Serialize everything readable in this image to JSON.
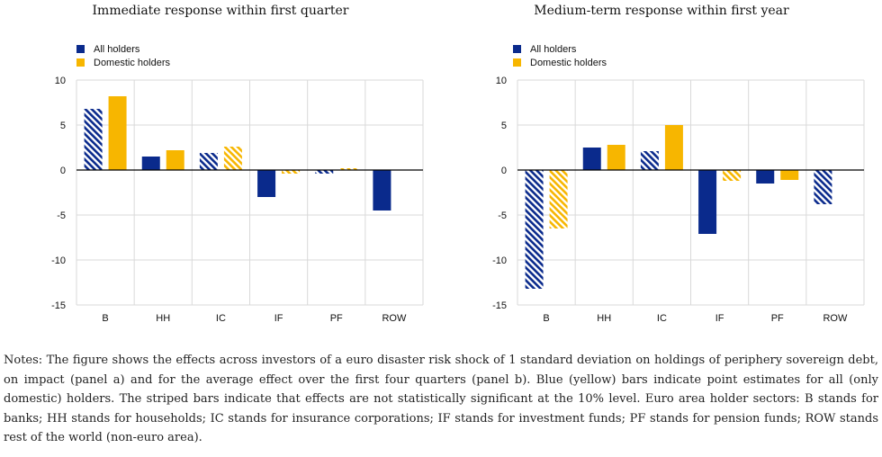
{
  "colors": {
    "all_holders": "#0a2a8c",
    "domestic_holders": "#f7b600",
    "grid": "#d9d9d9",
    "axis": "#000000"
  },
  "legend": {
    "all": "All holders",
    "domestic": "Domestic holders"
  },
  "chart_data": [
    {
      "type": "bar",
      "title": "Immediate response within first quarter",
      "categories": [
        "B",
        "HH",
        "IC",
        "IF",
        "PF",
        "ROW"
      ],
      "ylim": [
        -15,
        10
      ],
      "yticks": [
        10,
        5,
        0,
        -5,
        -10,
        -15
      ],
      "grid": true,
      "legend_position": "top-left",
      "series": [
        {
          "name": "All holders",
          "values": [
            6.8,
            1.5,
            1.9,
            -3.0,
            -0.4,
            -4.5
          ],
          "significant": [
            false,
            true,
            false,
            true,
            false,
            true
          ]
        },
        {
          "name": "Domestic holders",
          "values": [
            8.2,
            2.2,
            2.6,
            -0.4,
            0.2,
            null
          ],
          "significant": [
            true,
            true,
            false,
            false,
            false,
            null
          ]
        }
      ]
    },
    {
      "type": "bar",
      "title": "Medium-term response within first year",
      "categories": [
        "B",
        "HH",
        "IC",
        "IF",
        "PF",
        "ROW"
      ],
      "ylim": [
        -15,
        10
      ],
      "yticks": [
        10,
        5,
        0,
        -5,
        -10,
        -15
      ],
      "grid": true,
      "legend_position": "top-left",
      "series": [
        {
          "name": "All holders",
          "values": [
            -13.2,
            2.5,
            2.1,
            -7.1,
            -1.5,
            -3.8
          ],
          "significant": [
            false,
            true,
            false,
            true,
            true,
            false
          ]
        },
        {
          "name": "Domestic holders",
          "values": [
            -6.5,
            2.8,
            5.0,
            -1.2,
            -1.1,
            null
          ],
          "significant": [
            false,
            true,
            true,
            false,
            true,
            null
          ]
        }
      ]
    }
  ],
  "notes": "Notes: The figure shows the effects across investors of a euro disaster risk shock of 1 standard deviation on holdings of periphery sovereign debt, on impact (panel a) and for the average effect over the first four quarters (panel b). Blue (yellow) bars indicate point estimates for all (only domestic) holders. The striped bars indicate that effects are not statistically significant at the 10% level. Euro area holder sectors: B stands for banks; HH stands for households; IC stands for insurance corporations; IF stands for investment funds; PF stands for pension funds; ROW stands rest of the world (non-euro area)."
}
